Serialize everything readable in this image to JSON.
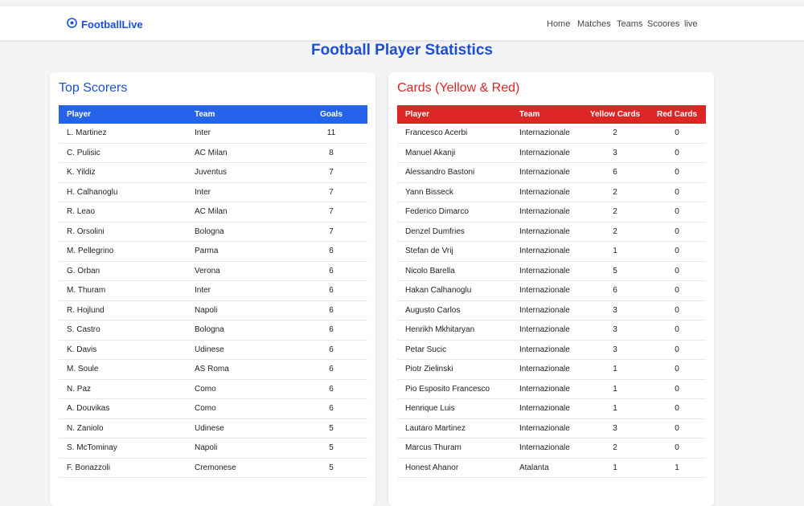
{
  "navbar": {
    "brand": "FootballLive",
    "links": [
      "Home",
      "Matches",
      "Teams",
      "Scoores",
      "live"
    ]
  },
  "page_title": "Football Player Statistics",
  "top_scorers": {
    "title": "Top Scorers",
    "columns": [
      "Player",
      "Team",
      "Goals"
    ],
    "rows": [
      [
        "L. Martinez",
        "Inter",
        11
      ],
      [
        "C. Pulisic",
        "AC Milan",
        8
      ],
      [
        "K. Yildiz",
        "Juventus",
        7
      ],
      [
        "H. Calhanoglu",
        "Inter",
        7
      ],
      [
        "R. Leao",
        "AC Milan",
        7
      ],
      [
        "R. Orsolini",
        "Bologna",
        7
      ],
      [
        "M. Pellegrino",
        "Parma",
        6
      ],
      [
        "G. Orban",
        "Verona",
        6
      ],
      [
        "M. Thuram",
        "Inter",
        6
      ],
      [
        "R. Hojlund",
        "Napoli",
        6
      ],
      [
        "S. Castro",
        "Bologna",
        6
      ],
      [
        "K. Davis",
        "Udinese",
        6
      ],
      [
        "M. Soule",
        "AS Roma",
        6
      ],
      [
        "N. Paz",
        "Como",
        6
      ],
      [
        "A. Douvikas",
        "Como",
        6
      ],
      [
        "N. Zaniolo",
        "Udinese",
        5
      ],
      [
        "S. McTominay",
        "Napoli",
        5
      ],
      [
        "F. Bonazzoli",
        "Cremonese",
        5
      ]
    ]
  },
  "cards": {
    "title": "Cards (Yellow & Red)",
    "columns": [
      "Player",
      "Team",
      "Yellow Cards",
      "Red Cards"
    ],
    "rows": [
      [
        "Francesco Acerbi",
        "Internazionale",
        2,
        0
      ],
      [
        "Manuel Akanji",
        "Internazionale",
        3,
        0
      ],
      [
        "Alessandro Bastoni",
        "Internazionale",
        6,
        0
      ],
      [
        "Yann Bisseck",
        "Internazionale",
        2,
        0
      ],
      [
        "Federico Dimarco",
        "Internazionale",
        2,
        0
      ],
      [
        "Denzel Dumfries",
        "Internazionale",
        2,
        0
      ],
      [
        "Stefan de Vrij",
        "Internazionale",
        1,
        0
      ],
      [
        "Nicolo Barella",
        "Internazionale",
        5,
        0
      ],
      [
        "Hakan Calhanoglu",
        "Internazionale",
        6,
        0
      ],
      [
        "Augusto Carlos",
        "Internazionale",
        3,
        0
      ],
      [
        "Henrikh Mkhitaryan",
        "Internazionale",
        3,
        0
      ],
      [
        "Petar Sucic",
        "Internazionale",
        3,
        0
      ],
      [
        "Piotr Zielinski",
        "Internazionale",
        1,
        0
      ],
      [
        "Pio Esposito Francesco",
        "Internazionale",
        1,
        0
      ],
      [
        "Henrique Luis",
        "Internazionale",
        1,
        0
      ],
      [
        "Lautaro Martinez",
        "Internazionale",
        3,
        0
      ],
      [
        "Marcus Thuram",
        "Internazionale",
        2,
        0
      ],
      [
        "Honest Ahanor",
        "Atalanta",
        1,
        1
      ]
    ]
  }
}
